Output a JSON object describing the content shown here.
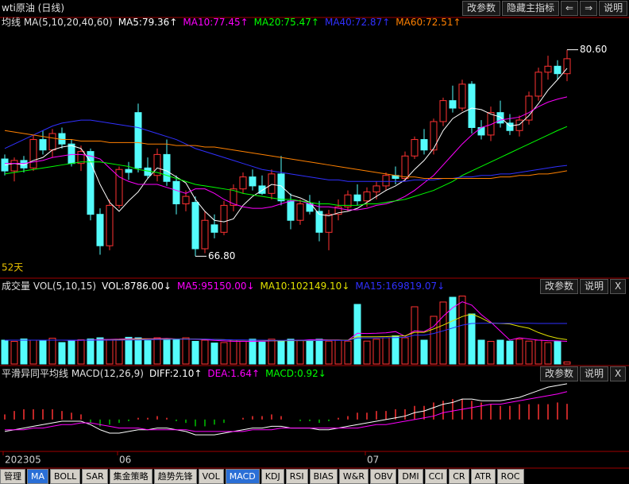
{
  "toolbar": {
    "title": "wti原油 (日线)",
    "buttons": [
      "改参数",
      "隐藏主指标",
      "⇐",
      "⇒",
      "说明"
    ]
  },
  "chart_data": [
    {
      "type": "candlestick",
      "title": "均线 MA(5,10,20,40,60)",
      "up_color": "#ff3232",
      "down_color": "#54fcfc",
      "ylim": [
        65.6,
        81.8
      ],
      "open": [
        73.3,
        72.5,
        73.2,
        72.7,
        74.6,
        73.9,
        75.0,
        74.3,
        73.0,
        73.8,
        69.6,
        67.5,
        70.2,
        72.6,
        76.4,
        72.7,
        72.2,
        73.6,
        71.8,
        70.3,
        70.4,
        67.3,
        68.9,
        68.4,
        70.2,
        71.3,
        72.1,
        71.5,
        71.0,
        72.3,
        70.5,
        69.2,
        70.3,
        69.8,
        68.4,
        69.6,
        70.1,
        70.9,
        70.5,
        71.1,
        71.5,
        72.2,
        72.0,
        73.5,
        74.6,
        73.9,
        75.8,
        77.2,
        76.7,
        78.3,
        75.4,
        74.9,
        76.4,
        75.7,
        75.2,
        75.9,
        77.5,
        79.1,
        79.5,
        79.0
      ],
      "high": [
        73.6,
        73.4,
        73.5,
        74.9,
        75.2,
        75.3,
        75.4,
        74.6,
        74.2,
        74.0,
        70.0,
        70.6,
        72.8,
        73.1,
        77.0,
        73.4,
        74.0,
        74.6,
        72.2,
        71.2,
        70.8,
        69.8,
        69.6,
        70.5,
        71.6,
        72.4,
        72.6,
        72.2,
        72.6,
        73.5,
        71.0,
        70.6,
        70.9,
        70.5,
        69.9,
        70.6,
        71.2,
        71.6,
        71.4,
        71.8,
        72.4,
        72.8,
        73.8,
        74.8,
        75.3,
        76.0,
        77.4,
        78.2,
        78.6,
        78.5,
        75.9,
        76.8,
        77.2,
        76.3,
        76.2,
        77.8,
        79.4,
        80.2,
        79.9,
        80.6
      ],
      "low": [
        72.2,
        71.8,
        72.4,
        72.5,
        73.6,
        73.4,
        74.0,
        72.8,
        72.5,
        69.2,
        66.9,
        67.2,
        70.0,
        71.9,
        72.4,
        72.0,
        71.8,
        71.5,
        69.6,
        69.8,
        66.8,
        67.0,
        68.0,
        68.2,
        69.8,
        71.0,
        71.2,
        70.9,
        70.6,
        70.2,
        68.6,
        68.9,
        69.6,
        67.8,
        67.2,
        69.2,
        69.8,
        70.2,
        70.1,
        70.6,
        71.2,
        71.6,
        71.8,
        73.3,
        73.6,
        73.6,
        75.5,
        76.4,
        76.5,
        75.0,
        74.6,
        74.5,
        75.4,
        74.9,
        74.8,
        75.6,
        77.2,
        78.6,
        78.6,
        78.5
      ],
      "close": [
        72.5,
        73.2,
        72.7,
        74.6,
        73.9,
        75.0,
        74.3,
        73.0,
        73.8,
        69.6,
        67.5,
        70.2,
        72.6,
        72.4,
        72.7,
        72.2,
        73.6,
        71.8,
        70.3,
        70.8,
        67.3,
        69.2,
        68.4,
        70.2,
        71.3,
        72.1,
        71.5,
        71.0,
        72.3,
        70.5,
        69.2,
        70.3,
        69.8,
        68.4,
        69.6,
        70.1,
        70.9,
        70.5,
        71.1,
        71.5,
        72.2,
        72.0,
        73.5,
        74.6,
        73.9,
        75.8,
        77.2,
        76.7,
        78.3,
        75.4,
        74.9,
        76.4,
        75.7,
        75.2,
        75.9,
        77.5,
        79.1,
        79.5,
        79.0,
        80.0
      ],
      "series": [
        {
          "name": "MA5:79.36↑",
          "color": "#ffffff",
          "values": [
            72.9,
            73.0,
            72.9,
            73.2,
            73.4,
            73.9,
            74.1,
            74.2,
            74.0,
            73.1,
            71.6,
            70.4,
            69.8,
            70.5,
            71.1,
            72.0,
            72.7,
            72.5,
            72.1,
            71.7,
            70.6,
            69.8,
            69.2,
            69.1,
            69.3,
            70.2,
            70.8,
            71.2,
            71.6,
            71.5,
            70.9,
            70.7,
            70.4,
            69.6,
            69.5,
            69.7,
            69.8,
            70.0,
            70.4,
            70.8,
            71.2,
            71.5,
            71.9,
            72.6,
            73.2,
            74.0,
            75.2,
            76.0,
            76.4,
            76.7,
            76.6,
            76.3,
            76.1,
            75.5,
            75.6,
            76.2,
            77.0,
            77.9,
            78.6,
            79.36
          ]
        },
        {
          "name": "MA10:77.45↑",
          "color": "#ff00ff",
          "values": [
            73.0,
            73.0,
            73.0,
            73.1,
            73.2,
            73.4,
            73.5,
            73.6,
            73.6,
            73.5,
            73.3,
            72.7,
            72.1,
            71.8,
            71.6,
            71.6,
            71.6,
            71.4,
            71.2,
            71.0,
            71.3,
            71.3,
            71.0,
            70.6,
            70.3,
            70.1,
            70.0,
            70.0,
            70.1,
            70.3,
            70.5,
            70.5,
            70.3,
            70.1,
            70.1,
            70.0,
            69.9,
            69.9,
            70.0,
            70.2,
            70.3,
            70.5,
            70.8,
            71.2,
            71.7,
            72.2,
            72.9,
            73.6,
            74.3,
            74.9,
            75.4,
            75.6,
            75.9,
            76.0,
            76.1,
            76.4,
            76.8,
            77.1,
            77.3,
            77.45
          ]
        },
        {
          "name": "MA20:75.47↑",
          "color": "#00ff00",
          "values": [
            72.3,
            72.4,
            72.5,
            72.6,
            72.7,
            72.8,
            72.9,
            73.0,
            73.1,
            73.1,
            73.1,
            73.0,
            72.9,
            72.8,
            72.6,
            72.5,
            72.4,
            72.2,
            72.0,
            71.8,
            71.6,
            71.5,
            71.4,
            71.3,
            71.2,
            71.0,
            70.9,
            70.8,
            70.7,
            70.6,
            70.6,
            70.5,
            70.4,
            70.3,
            70.3,
            70.2,
            70.2,
            70.2,
            70.3,
            70.3,
            70.4,
            70.5,
            70.6,
            70.8,
            71.0,
            71.2,
            71.5,
            71.8,
            72.2,
            72.5,
            72.8,
            73.1,
            73.4,
            73.7,
            74.0,
            74.3,
            74.6,
            74.9,
            75.2,
            75.47
          ]
        },
        {
          "name": "MA40:72.87↑",
          "color": "#3030ff",
          "values": [
            74.0,
            74.3,
            74.6,
            74.9,
            75.2,
            75.5,
            75.7,
            75.8,
            75.9,
            75.9,
            75.8,
            75.7,
            75.6,
            75.5,
            75.4,
            75.2,
            75.0,
            74.8,
            74.6,
            74.3,
            74.0,
            73.8,
            73.6,
            73.4,
            73.2,
            73.0,
            72.8,
            72.6,
            72.5,
            72.4,
            72.3,
            72.2,
            72.1,
            72.0,
            71.9,
            71.9,
            71.8,
            71.8,
            71.8,
            71.8,
            71.8,
            71.8,
            71.8,
            71.9,
            71.9,
            71.9,
            72.0,
            72.0,
            72.1,
            72.1,
            72.2,
            72.2,
            72.3,
            72.3,
            72.4,
            72.5,
            72.6,
            72.7,
            72.8,
            72.87
          ]
        },
        {
          "name": "MA60:72.51↑",
          "color": "#ff8000",
          "values": [
            75.2,
            75.1,
            75.0,
            74.9,
            74.8,
            74.7,
            74.6,
            74.6,
            74.5,
            74.5,
            74.5,
            74.4,
            74.4,
            74.4,
            74.4,
            74.3,
            74.3,
            74.3,
            74.2,
            74.2,
            74.2,
            74.1,
            74.1,
            74.0,
            73.9,
            73.8,
            73.7,
            73.6,
            73.5,
            73.4,
            73.3,
            73.2,
            73.1,
            73.0,
            72.9,
            72.8,
            72.7,
            72.6,
            72.5,
            72.4,
            72.3,
            72.2,
            72.1,
            72.1,
            72.0,
            72.0,
            72.0,
            72.0,
            72.0,
            72.0,
            72.0,
            72.0,
            72.1,
            72.1,
            72.2,
            72.2,
            72.3,
            72.3,
            72.4,
            72.51
          ]
        }
      ],
      "annotations": [
        {
          "value": 80.6,
          "label": "80.60"
        },
        {
          "value": 66.8,
          "label": "66.80"
        }
      ],
      "period_label": "52天"
    },
    {
      "type": "volume",
      "title": "成交量 VOL(5,10,15)",
      "ylim": [
        0,
        300000
      ],
      "buttons": [
        "改参数",
        "说明",
        "X"
      ],
      "series": [
        {
          "name": "VOL:8786.00↓",
          "color": "#ffffff",
          "style": "bar",
          "values": [
            100000,
            95000,
            105000,
            100000,
            98000,
            108000,
            90000,
            100000,
            102000,
            105000,
            110000,
            100000,
            100000,
            112000,
            110000,
            98000,
            110000,
            105000,
            102000,
            110000,
            95000,
            100000,
            88000,
            90000,
            100000,
            95000,
            104000,
            92000,
            104000,
            96000,
            104000,
            100000,
            100000,
            104000,
            96000,
            100000,
            96000,
            250000,
            96000,
            104000,
            110000,
            118000,
            110000,
            240000,
            100000,
            200000,
            260000,
            280000,
            285000,
            210000,
            100000,
            95000,
            100000,
            96000,
            104000,
            96000,
            100000,
            90000,
            95000,
            8786
          ]
        },
        {
          "name": "MA5:95150.00↓",
          "color": "#ff00ff",
          "values": [
            100000,
            100000,
            100000,
            100000,
            100000,
            100000,
            100000,
            99000,
            99000,
            101000,
            103000,
            103000,
            104000,
            106000,
            106000,
            106000,
            106000,
            107000,
            105000,
            105000,
            104000,
            102000,
            99000,
            97000,
            95000,
            95000,
            95000,
            96000,
            97000,
            98000,
            100000,
            99000,
            102000,
            102000,
            101000,
            101000,
            99000,
            129000,
            128000,
            129000,
            131000,
            136000,
            116000,
            139000,
            136000,
            157000,
            200000,
            236000,
            261000,
            247000,
            207000,
            176000,
            138000,
            100000,
            110000,
            105000,
            100000,
            98000,
            97000,
            95150
          ]
        },
        {
          "name": "MA10:102149.10↓",
          "color": "#e0e000",
          "values": [
            100000,
            100000,
            100000,
            100000,
            100000,
            100000,
            100000,
            100000,
            100000,
            100000,
            101000,
            101000,
            102000,
            103000,
            104000,
            104000,
            104000,
            105000,
            105000,
            105000,
            105000,
            104000,
            103000,
            102000,
            100000,
            100000,
            100000,
            99000,
            98000,
            97000,
            98000,
            98000,
            98000,
            99000,
            100000,
            100000,
            100000,
            114000,
            114000,
            114000,
            115000,
            117000,
            118000,
            133000,
            133000,
            147000,
            163000,
            181000,
            199000,
            210000,
            193000,
            172000,
            170000,
            168000,
            158000,
            150000,
            132000,
            118000,
            108000,
            102149.1
          ]
        },
        {
          "name": "MA15:169819.07↓",
          "color": "#3030ff",
          "values": [
            100000,
            100000,
            100000,
            100000,
            100000,
            100000,
            100000,
            100000,
            100000,
            100000,
            100000,
            100000,
            100000,
            101000,
            101000,
            102000,
            103000,
            103000,
            104000,
            104000,
            104000,
            104000,
            103000,
            102000,
            101000,
            101000,
            100000,
            100000,
            99000,
            99000,
            99000,
            99000,
            99000,
            99000,
            99000,
            99000,
            99000,
            109000,
            109000,
            109000,
            110000,
            111000,
            112000,
            121000,
            121000,
            128000,
            139000,
            151000,
            163000,
            170000,
            171000,
            171000,
            171000,
            171000,
            171000,
            171000,
            170000,
            170000,
            170000,
            169819.07
          ]
        }
      ]
    },
    {
      "type": "macd",
      "title": "平滑异同平均线 MACD(12,26,9)",
      "ylim": [
        -1.5,
        2.7
      ],
      "buttons": [
        "改参数",
        "说明",
        "X"
      ],
      "pos_color": "#ff3232",
      "neg_color": "#00c000",
      "series": [
        {
          "name": "DIFF:2.10↑",
          "color": "#ffffff",
          "values": [
            -0.7,
            -0.6,
            -0.5,
            -0.4,
            -0.3,
            -0.2,
            -0.1,
            -0.1,
            -0.1,
            -0.3,
            -0.6,
            -0.8,
            -0.8,
            -0.7,
            -0.6,
            -0.6,
            -0.5,
            -0.5,
            -0.6,
            -0.7,
            -0.9,
            -0.9,
            -0.9,
            -0.8,
            -0.7,
            -0.6,
            -0.5,
            -0.5,
            -0.4,
            -0.4,
            -0.5,
            -0.5,
            -0.5,
            -0.6,
            -0.6,
            -0.5,
            -0.4,
            -0.3,
            -0.2,
            -0.1,
            0.0,
            0.1,
            0.2,
            0.4,
            0.5,
            0.7,
            0.9,
            1.0,
            1.2,
            1.2,
            1.1,
            1.1,
            1.1,
            1.2,
            1.3,
            1.5,
            1.7,
            1.9,
            2.0,
            2.1
          ]
        },
        {
          "name": "DEA:1.64↑",
          "color": "#ff00ff",
          "values": [
            -0.6,
            -0.6,
            -0.6,
            -0.5,
            -0.5,
            -0.4,
            -0.3,
            -0.3,
            -0.2,
            -0.2,
            -0.3,
            -0.4,
            -0.5,
            -0.5,
            -0.5,
            -0.6,
            -0.6,
            -0.6,
            -0.6,
            -0.6,
            -0.7,
            -0.7,
            -0.7,
            -0.7,
            -0.7,
            -0.7,
            -0.6,
            -0.6,
            -0.6,
            -0.5,
            -0.5,
            -0.5,
            -0.5,
            -0.5,
            -0.5,
            -0.5,
            -0.5,
            -0.5,
            -0.4,
            -0.3,
            -0.3,
            -0.2,
            -0.1,
            0.0,
            0.1,
            0.2,
            0.4,
            0.5,
            0.6,
            0.7,
            0.8,
            0.9,
            0.9,
            1.0,
            1.1,
            1.2,
            1.3,
            1.4,
            1.5,
            1.64
          ]
        },
        {
          "name": "MACD:0.92↓",
          "color": "#00ff00",
          "style": "bar",
          "values": [
            0.3,
            0.5,
            0.6,
            0.6,
            0.6,
            0.6,
            0.5,
            0.4,
            0.3,
            -0.2,
            -0.4,
            -0.3,
            -0.2,
            -0.1,
            0.1,
            0.1,
            0.2,
            0.1,
            -0.1,
            -0.2,
            -0.4,
            -0.4,
            -0.3,
            -0.2,
            0.0,
            0.1,
            0.2,
            0.2,
            0.3,
            0.2,
            0.0,
            -0.1,
            -0.1,
            -0.2,
            -0.1,
            0.1,
            0.2,
            0.4,
            0.4,
            0.5,
            0.5,
            0.6,
            0.6,
            0.8,
            0.8,
            1.0,
            1.1,
            1.2,
            1.2,
            1.1,
            1.0,
            0.9,
            0.8,
            0.8,
            0.9,
            0.9,
            0.9,
            0.9,
            1.0,
            0.92
          ]
        }
      ],
      "xticks": [
        {
          "value": 0,
          "label": "202305"
        },
        {
          "value": 12,
          "label": "06"
        },
        {
          "value": 38,
          "label": "07"
        }
      ]
    }
  ],
  "tabs": [
    "管理",
    "MA",
    "BOLL",
    "SAR",
    "集金策略",
    "趋势先锋",
    "VOL",
    "MACD",
    "KDJ",
    "RSI",
    "BIAS",
    "W&R",
    "OBV",
    "DMI",
    "CCI",
    "CR",
    "ATR",
    "ROC"
  ],
  "active_tabs": [
    1,
    7
  ]
}
